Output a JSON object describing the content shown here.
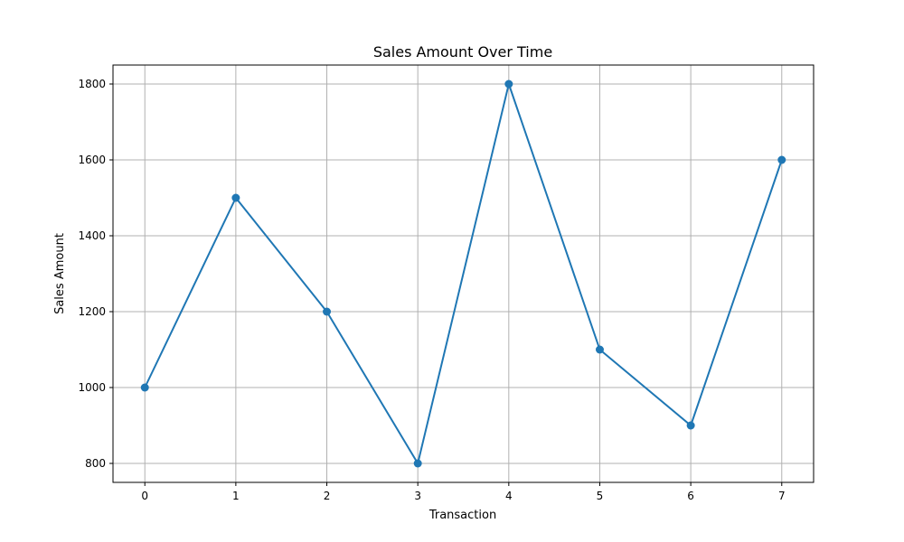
{
  "chart_data": {
    "type": "line",
    "title": "Sales Amount Over Time",
    "xlabel": "Transaction",
    "ylabel": "Sales Amount",
    "x": [
      0,
      1,
      2,
      3,
      4,
      5,
      6,
      7
    ],
    "series": [
      {
        "values": [
          1000,
          1500,
          1200,
          800,
          1800,
          1100,
          900,
          1600
        ],
        "color": "#1f77b4",
        "marker": "circle"
      }
    ],
    "xticks": [
      0,
      1,
      2,
      3,
      4,
      5,
      6,
      7
    ],
    "yticks": [
      800,
      1000,
      1200,
      1400,
      1600,
      1800
    ],
    "xlim": [
      -0.35,
      7.35
    ],
    "ylim": [
      750,
      1850
    ],
    "grid": true
  }
}
